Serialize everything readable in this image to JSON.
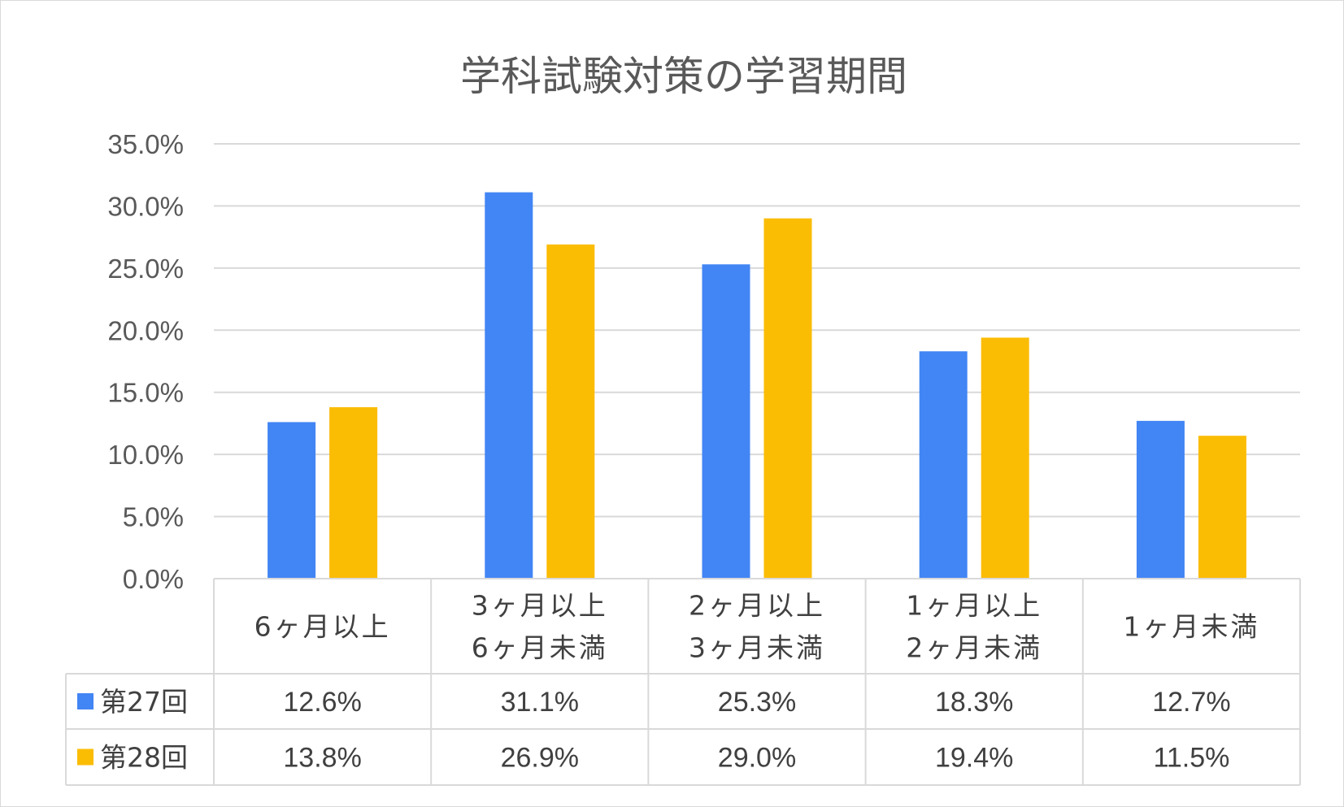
{
  "chart_data": {
    "type": "bar",
    "title": "学科試験対策の学習期間",
    "categories": [
      [
        "6ヶ月以上"
      ],
      [
        "3ヶ月以上",
        "6ヶ月未満"
      ],
      [
        "2ヶ月以上",
        "3ヶ月未満"
      ],
      [
        "1ヶ月以上",
        "2ヶ月未満"
      ],
      [
        "1ヶ月未満"
      ]
    ],
    "series": [
      {
        "name": "第27回",
        "color": "#4285f4",
        "values": [
          12.6,
          31.1,
          25.3,
          18.3,
          12.7
        ],
        "labels": [
          "12.6%",
          "31.1%",
          "25.3%",
          "18.3%",
          "12.7%"
        ]
      },
      {
        "name": "第28回",
        "color": "#fbbc04",
        "values": [
          13.8,
          26.9,
          29.0,
          19.4,
          11.5
        ],
        "labels": [
          "13.8%",
          "26.9%",
          "29.0%",
          "19.4%",
          "11.5%"
        ]
      }
    ],
    "ylim": [
      0,
      35
    ],
    "yticks": [
      "0.0%",
      "5.0%",
      "10.0%",
      "15.0%",
      "20.0%",
      "25.0%",
      "30.0%",
      "35.0%"
    ],
    "grid": true,
    "legend": "data-table"
  }
}
